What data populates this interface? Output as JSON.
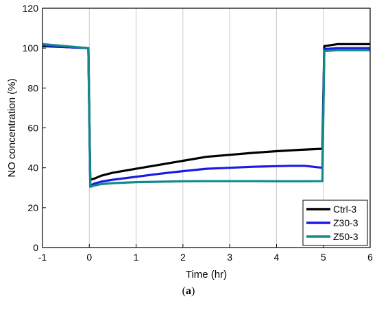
{
  "chart_data": {
    "type": "line",
    "xlabel": "Time (hr)",
    "ylabel": "NO concentration (%)",
    "xlim": [
      -1,
      6
    ],
    "ylim": [
      0,
      120
    ],
    "xticks": [
      -1,
      0,
      1,
      2,
      3,
      4,
      5,
      6
    ],
    "yticks": [
      0,
      20,
      40,
      60,
      80,
      100,
      120
    ],
    "grid": "vertical",
    "legend_position": "bottom-right",
    "series": [
      {
        "name": "Ctrl-3",
        "color": "#000000",
        "x": [
          -1,
          -0.5,
          -0.02,
          0.02,
          0.1,
          0.25,
          0.5,
          1.0,
          1.5,
          2.0,
          2.5,
          3.0,
          3.5,
          4.0,
          4.5,
          4.98,
          5.02,
          5.3,
          6.0
        ],
        "y": [
          101,
          100.5,
          100,
          34,
          34.5,
          36,
          37.5,
          39.5,
          41.5,
          43.5,
          45.5,
          46.5,
          47.5,
          48.3,
          49.0,
          49.5,
          101,
          102,
          102
        ]
      },
      {
        "name": "Z30-3",
        "color": "#1a1ae6",
        "x": [
          -1,
          -0.5,
          -0.02,
          0.02,
          0.1,
          0.25,
          0.5,
          1.0,
          1.5,
          2.0,
          2.5,
          3.0,
          3.5,
          4.0,
          4.3,
          4.6,
          4.98,
          5.02,
          5.3,
          6.0
        ],
        "y": [
          101.5,
          100.5,
          100,
          31,
          32,
          33,
          34,
          35.5,
          37,
          38.3,
          39.5,
          40,
          40.5,
          40.8,
          41.0,
          41.0,
          40.0,
          99.5,
          100,
          100
        ]
      },
      {
        "name": "Z50-3",
        "color": "#138a8a",
        "x": [
          -1,
          -0.5,
          -0.02,
          0.02,
          0.1,
          0.25,
          0.5,
          1.0,
          1.5,
          2.0,
          2.5,
          3.0,
          3.5,
          4.0,
          4.5,
          4.98,
          5.02,
          5.3,
          6.0
        ],
        "y": [
          102,
          101,
          100,
          30.5,
          31,
          31.8,
          32.3,
          32.8,
          33.0,
          33.2,
          33.3,
          33.3,
          33.3,
          33.2,
          33.2,
          33.3,
          98.5,
          99,
          99
        ]
      }
    ]
  },
  "caption": {
    "open": "(",
    "letter": "a",
    "close": ")"
  }
}
